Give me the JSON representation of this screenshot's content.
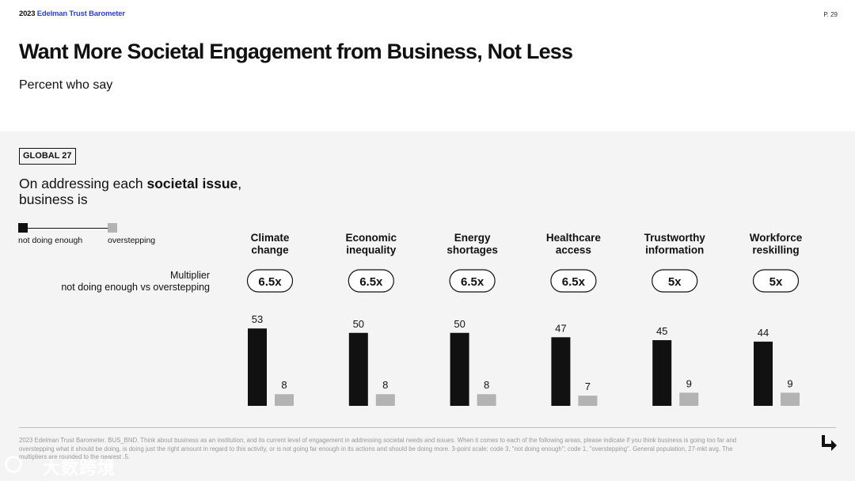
{
  "header": {
    "brand_year": "2023",
    "brand_name": "Edelman Trust Barometer",
    "page_number": "P. 29",
    "title": "Want More Societal Engagement from Business, Not Less",
    "subtitle": "Percent who say"
  },
  "panel": {
    "scope_tag": "GLOBAL 27",
    "question_pre": "On addressing each ",
    "question_bold": "societal issue",
    "question_post": ",",
    "question_line2": "business is"
  },
  "legend": {
    "item_a": "not doing enough",
    "item_b": "overstepping"
  },
  "multiplier_label": {
    "line1": "Multiplier",
    "line2": "not doing enough vs overstepping"
  },
  "chart_data": {
    "type": "bar",
    "categories": [
      [
        "Climate",
        "change"
      ],
      [
        "Economic",
        "inequality"
      ],
      [
        "Energy",
        "shortages"
      ],
      [
        "Healthcare",
        "access"
      ],
      [
        "Trustworthy",
        "information"
      ],
      [
        "Workforce",
        "reskilling"
      ]
    ],
    "multipliers": [
      "6.5x",
      "6.5x",
      "6.5x",
      "6.5x",
      "5x",
      "5x"
    ],
    "series": [
      {
        "name": "not doing enough",
        "color": "#111111",
        "values": [
          53,
          50,
          50,
          47,
          45,
          44
        ]
      },
      {
        "name": "overstepping",
        "color": "#b3b3b3",
        "values": [
          8,
          8,
          8,
          7,
          9,
          9
        ]
      }
    ],
    "ylim": [
      0,
      60
    ]
  },
  "footnote": "2023 Edelman Trust Barometer. BUS_BND. Think about business as an institution, and its current level of engagement in addressing societal needs and issues. When it comes to each of the following areas, please indicate if you think business is going too far and overstepping what it should be doing, is doing just the right amount in regard to this activity, or is not going far enough in its actions and should be doing more. 3-point scale; code 3, \"not doing enough\"; code 1, \"overstepping\". General population, 27-mkt avg. The multipliers are rounded to the nearest .5.",
  "watermark": "大数跨境",
  "icons": {
    "next": "arrow-down-right-icon"
  }
}
